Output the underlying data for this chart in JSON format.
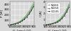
{
  "left_ylabel": "P [W]",
  "right_ylabel": "I [A]",
  "xlabel": "V_{rms} [V]",
  "x_values": [
    160,
    180,
    200,
    220,
    240,
    260,
    280,
    300,
    320,
    340,
    360
  ],
  "series": {
    "NO65": {
      "color": "#55bb55",
      "marker": "o",
      "losses": [
        18,
        26,
        38,
        56,
        80,
        112,
        155,
        208,
        272,
        348,
        435
      ],
      "currents": [
        0.14,
        0.19,
        0.27,
        0.38,
        0.54,
        0.77,
        1.08,
        1.5,
        2.05,
        2.75,
        3.6
      ]
    },
    "NO50": {
      "color": "#777777",
      "marker": "s",
      "losses": [
        16,
        23,
        34,
        49,
        70,
        98,
        135,
        182,
        240,
        310,
        395
      ],
      "currents": [
        0.12,
        0.17,
        0.24,
        0.33,
        0.47,
        0.67,
        0.95,
        1.33,
        1.85,
        2.52,
        3.35
      ]
    },
    "GO35": {
      "color": "#222222",
      "marker": "^",
      "losses": [
        13,
        19,
        28,
        41,
        59,
        84,
        117,
        160,
        215,
        282,
        365
      ],
      "currents": [
        0.1,
        0.14,
        0.2,
        0.28,
        0.4,
        0.58,
        0.83,
        1.18,
        1.65,
        2.28,
        3.05
      ]
    }
  },
  "xlim": [
    155,
    365
  ],
  "ylim_left": [
    0,
    450
  ],
  "ylim_right": [
    0,
    4.0
  ],
  "yticks_left": [
    0,
    100,
    200,
    300,
    400
  ],
  "yticks_right": [
    0,
    1,
    2,
    3,
    4
  ],
  "xticks": [
    160,
    200,
    240,
    280,
    320,
    360
  ],
  "bg_color": "#d8d8d8",
  "grid_color": "#ffffff",
  "legend_labels": [
    "NO65",
    "NO50",
    "GO35"
  ],
  "legend_fontsize": 3.0,
  "tick_fontsize": 2.8,
  "label_fontsize": 3.0,
  "linewidth": 0.5,
  "markersize": 0.7
}
